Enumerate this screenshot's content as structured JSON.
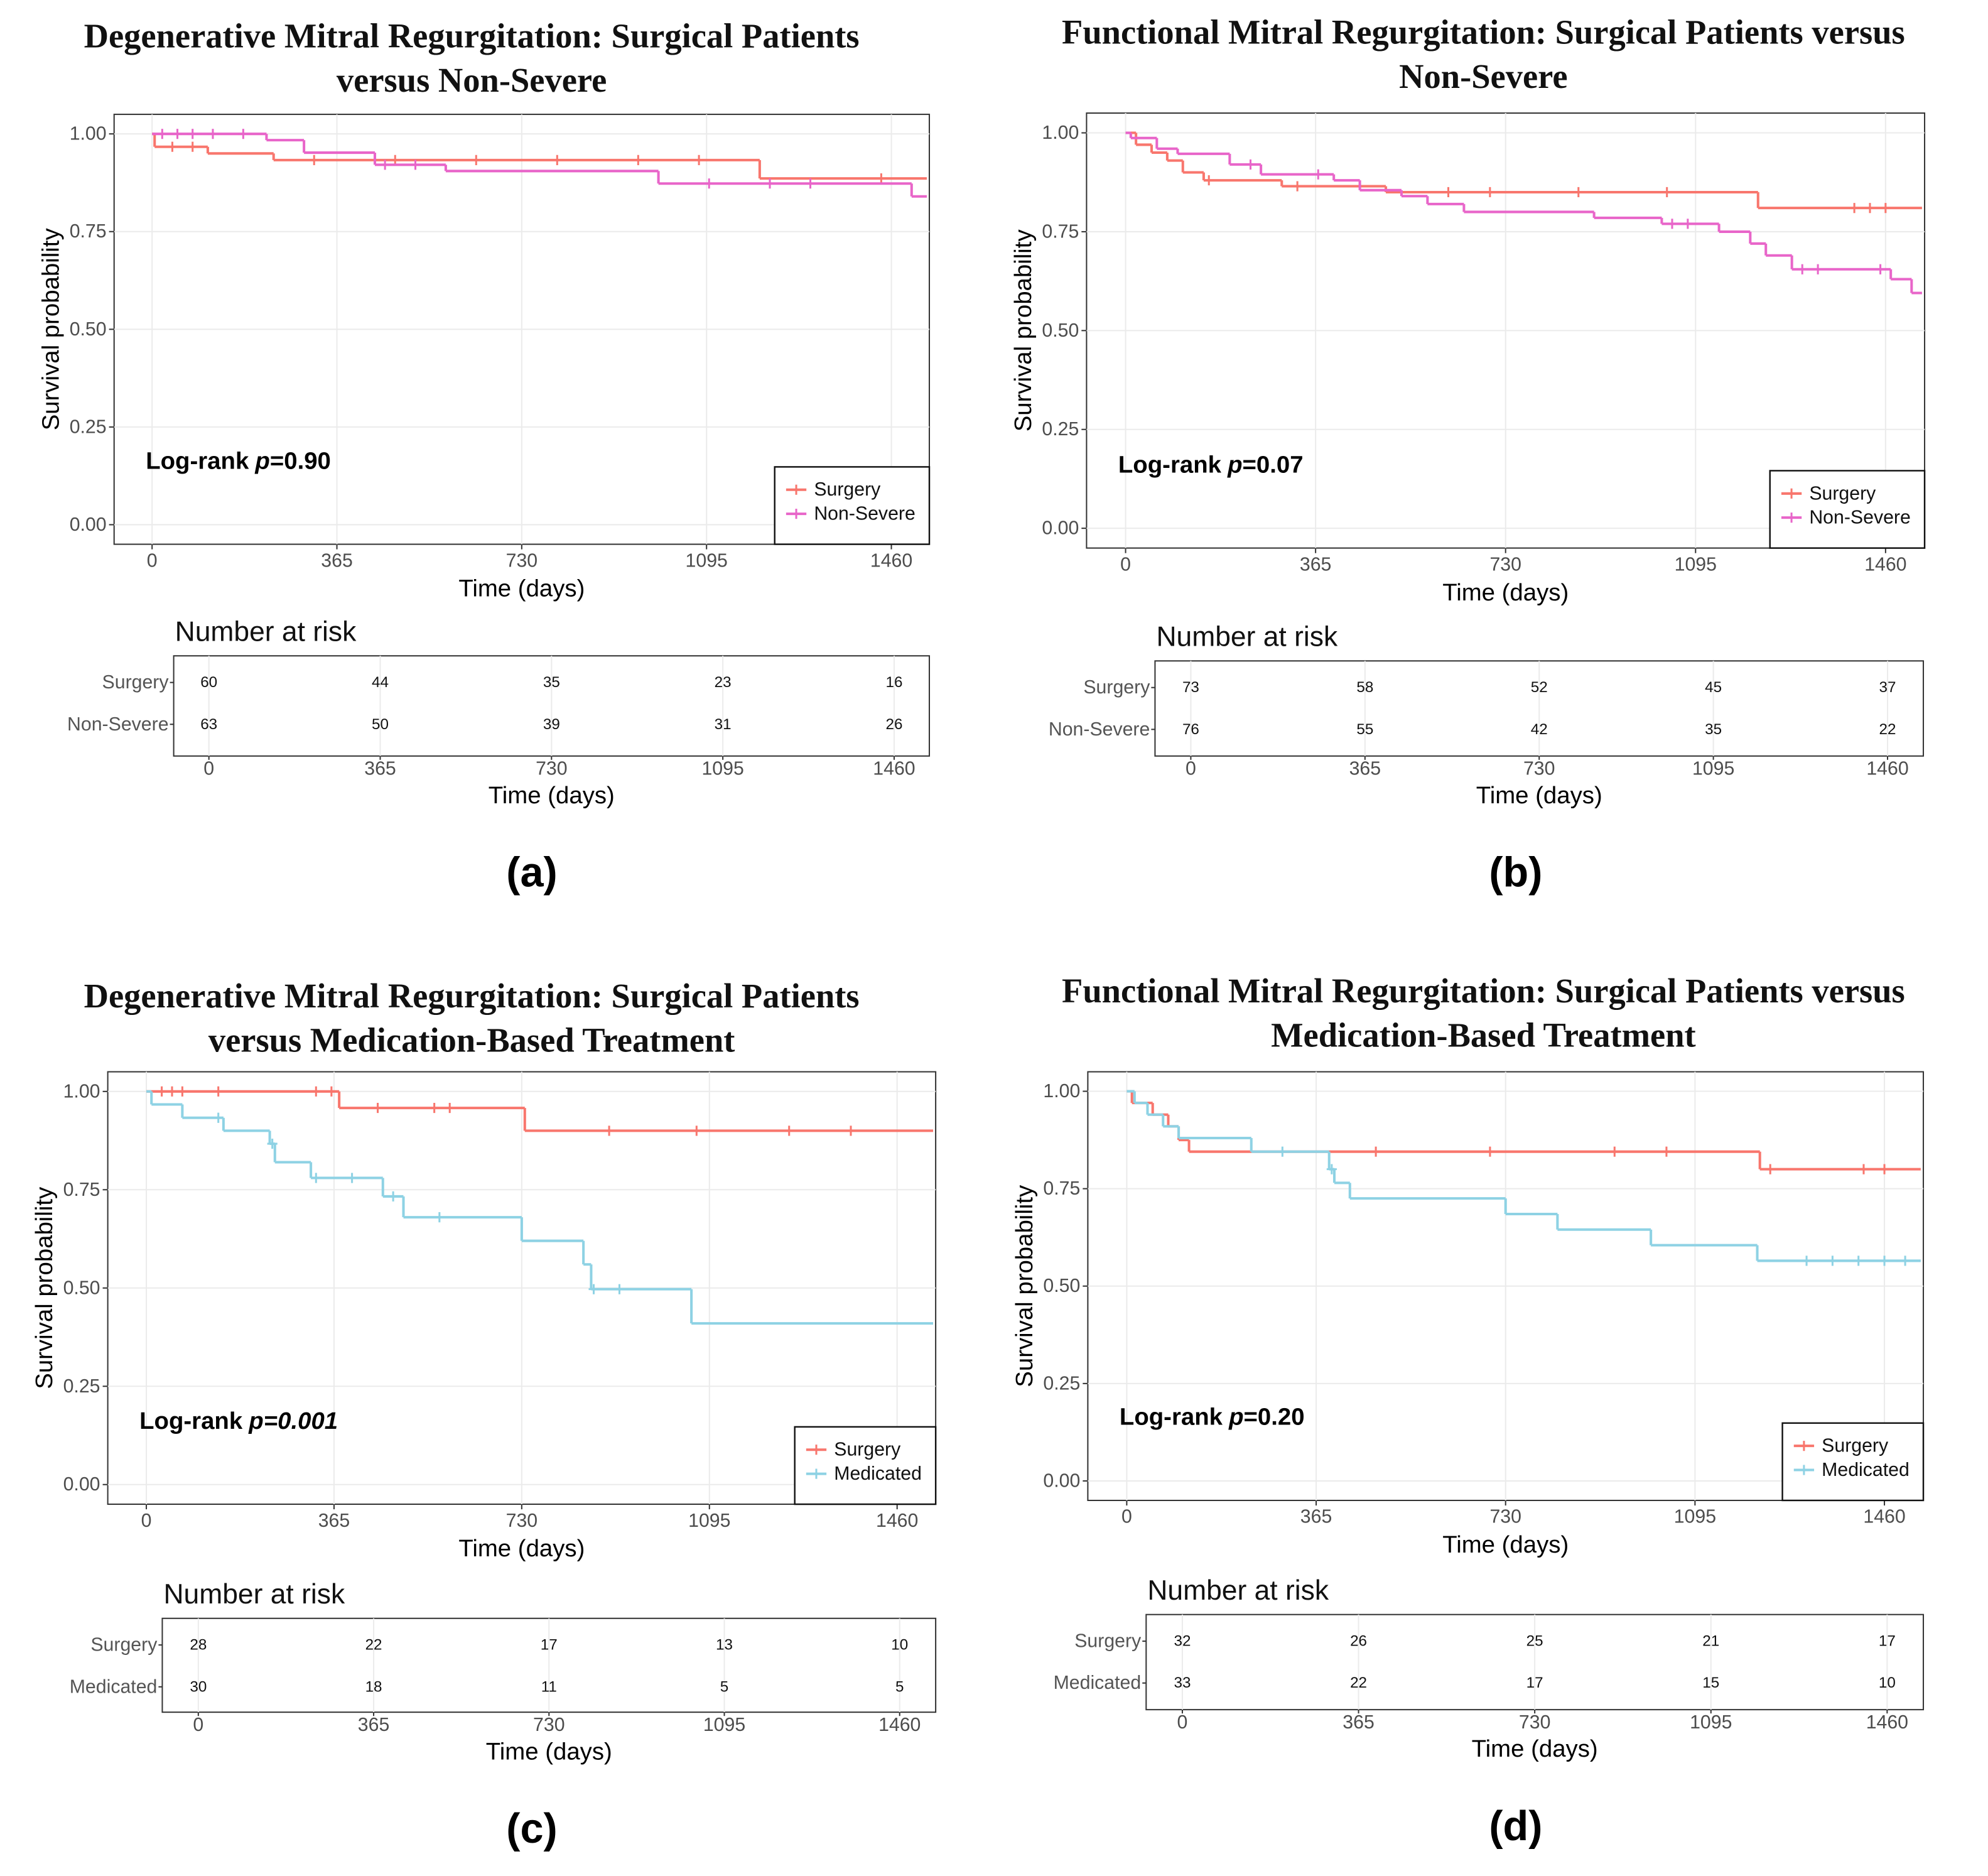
{
  "chart_data": [
    {
      "type": "step",
      "title": [
        "Degenerative Mitral Regurgitation: Surgical Patients",
        "versus Non-Severe"
      ],
      "panel_label": "(a)",
      "xlabel": "Time (days)",
      "ylabel": "Survival probability",
      "xlim": [
        -75,
        1535
      ],
      "ylim": [
        -0.05,
        1.05
      ],
      "xticks": [
        0,
        365,
        730,
        1095,
        1460
      ],
      "yticks": [
        {
          "value": 0,
          "label": "0.00"
        },
        {
          "value": 0.25,
          "label": "0.25"
        },
        {
          "value": 0.5,
          "label": "0.50"
        },
        {
          "value": 0.75,
          "label": "0.75"
        },
        {
          "value": 1,
          "label": "1.00"
        }
      ],
      "grid": true,
      "legend": "bottom-right",
      "annotation": {
        "label": "Log-rank",
        "p": "p",
        "value": "=0.90",
        "value_italic": false
      },
      "series": [
        {
          "name": "Surgery",
          "color": "#F8766D",
          "x": [
            0,
            5,
            110,
            240,
            1200,
            1530
          ],
          "values": [
            1.0,
            0.967,
            0.95,
            0.933,
            0.886,
            0.886
          ],
          "censored_x": [
            40,
            80,
            320,
            480,
            640,
            800,
            960,
            1080,
            1440
          ],
          "censored_values": [
            0.967,
            0.967,
            0.933,
            0.933,
            0.933,
            0.933,
            0.933,
            0.933,
            0.886
          ]
        },
        {
          "name": "Non-Severe",
          "color": "#E865C9",
          "x": [
            0,
            226,
            300,
            440,
            580,
            1000,
            1500,
            1530
          ],
          "values": [
            1.0,
            0.984,
            0.952,
            0.921,
            0.905,
            0.873,
            0.84,
            0.84
          ],
          "censored_x": [
            20,
            50,
            80,
            120,
            180,
            460,
            520,
            1100,
            1220,
            1300
          ],
          "censored_values": [
            1,
            1,
            1,
            1,
            1,
            0.921,
            0.921,
            0.873,
            0.873,
            0.873
          ]
        }
      ],
      "risk_table": {
        "title": "Number at risk",
        "xlabel": "Time (days)",
        "xlim": [
          -75,
          1535
        ],
        "xticks": [
          0,
          365,
          730,
          1095,
          1460
        ],
        "rows": [
          {
            "name": "Surgery",
            "values": [
              60,
              44,
              35,
              23,
              16
            ]
          },
          {
            "name": "Non-Severe",
            "values": [
              63,
              50,
              39,
              31,
              26
            ]
          }
        ]
      }
    },
    {
      "type": "step",
      "title": [
        "Functional Mitral Regurgitation: Surgical Patients versus",
        "Non-Severe"
      ],
      "panel_label": "(b)",
      "xlabel": "Time (days)",
      "ylabel": "Survival probability",
      "xlim": [
        -75,
        1535
      ],
      "ylim": [
        -0.05,
        1.05
      ],
      "xticks": [
        0,
        365,
        730,
        1095,
        1460
      ],
      "yticks": [
        {
          "value": 0,
          "label": "0.00"
        },
        {
          "value": 0.25,
          "label": "0.25"
        },
        {
          "value": 0.5,
          "label": "0.50"
        },
        {
          "value": 0.75,
          "label": "0.75"
        },
        {
          "value": 1,
          "label": "1.00"
        }
      ],
      "grid": true,
      "legend": "bottom-right",
      "annotation": {
        "label": "Log-rank",
        "p": "p",
        "value": "=0.07",
        "value_italic": false
      },
      "series": [
        {
          "name": "Surgery",
          "color": "#F8766D",
          "x": [
            0,
            20,
            50,
            80,
            110,
            150,
            300,
            500,
            1215,
            1530
          ],
          "values": [
            1.0,
            0.97,
            0.95,
            0.93,
            0.9,
            0.88,
            0.865,
            0.85,
            0.81,
            0.81
          ],
          "censored_x": [
            160,
            330,
            620,
            700,
            870,
            1040,
            1400,
            1430,
            1460
          ],
          "censored_values": [
            0.88,
            0.865,
            0.85,
            0.85,
            0.85,
            0.85,
            0.81,
            0.81,
            0.81
          ]
        },
        {
          "name": "Non-Severe",
          "color": "#E865C9",
          "x": [
            0,
            10,
            60,
            100,
            200,
            260,
            400,
            450,
            530,
            580,
            650,
            900,
            1030,
            1140,
            1200,
            1230,
            1280,
            1470,
            1510,
            1530
          ],
          "values": [
            1.0,
            0.987,
            0.96,
            0.947,
            0.92,
            0.895,
            0.88,
            0.855,
            0.84,
            0.82,
            0.8,
            0.785,
            0.77,
            0.75,
            0.72,
            0.69,
            0.655,
            0.63,
            0.595,
            0.595
          ],
          "censored_x": [
            240,
            370,
            1050,
            1080,
            1300,
            1330,
            1450
          ],
          "censored_values": [
            0.92,
            0.895,
            0.77,
            0.77,
            0.655,
            0.655,
            0.655
          ]
        }
      ],
      "risk_table": {
        "title": "Number at risk",
        "xlabel": "Time (days)",
        "xlim": [
          -75,
          1535
        ],
        "xticks": [
          0,
          365,
          730,
          1095,
          1460
        ],
        "rows": [
          {
            "name": "Surgery",
            "values": [
              73,
              58,
              52,
              45,
              37
            ]
          },
          {
            "name": "Non-Severe",
            "values": [
              76,
              55,
              42,
              35,
              22
            ]
          }
        ]
      }
    },
    {
      "type": "step",
      "title": [
        "Degenerative Mitral Regurgitation: Surgical Patients",
        "versus Medication-Based Treatment"
      ],
      "panel_label": "(c)",
      "xlabel": "Time (days)",
      "ylabel": "Survival probability",
      "xlim": [
        -75,
        1535
      ],
      "ylim": [
        -0.05,
        1.05
      ],
      "xticks": [
        0,
        365,
        730,
        1095,
        1460
      ],
      "yticks": [
        {
          "value": 0,
          "label": "0.00"
        },
        {
          "value": 0.25,
          "label": "0.25"
        },
        {
          "value": 0.5,
          "label": "0.50"
        },
        {
          "value": 0.75,
          "label": "0.75"
        },
        {
          "value": 1,
          "label": "1.00"
        }
      ],
      "grid": true,
      "legend": "bottom-right",
      "annotation": {
        "label": "Log-rank",
        "p": "p",
        "value": "=0.001",
        "value_italic": true
      },
      "series": [
        {
          "name": "Surgery",
          "color": "#F8766D",
          "x": [
            0,
            375,
            736,
            1530
          ],
          "values": [
            1.0,
            0.958,
            0.9,
            0.9
          ],
          "censored_x": [
            30,
            50,
            70,
            140,
            330,
            360,
            450,
            560,
            590,
            900,
            1070,
            1250,
            1370
          ],
          "censored_values": [
            1,
            1,
            1,
            1,
            1,
            1,
            0.958,
            0.958,
            0.958,
            0.9,
            0.9,
            0.9,
            0.9
          ]
        },
        {
          "name": "Medicated",
          "color": "#8ED2E4",
          "x": [
            0,
            10,
            70,
            150,
            240,
            250,
            320,
            460,
            500,
            730,
            850,
            865,
            1060,
            1530
          ],
          "values": [
            1.0,
            0.967,
            0.933,
            0.9,
            0.867,
            0.82,
            0.78,
            0.733,
            0.68,
            0.62,
            0.56,
            0.497,
            0.41,
            0.41
          ],
          "censored_x": [
            140,
            245,
            330,
            400,
            480,
            570,
            870,
            920
          ],
          "censored_values": [
            0.933,
            0.867,
            0.78,
            0.78,
            0.733,
            0.68,
            0.497,
            0.497
          ]
        }
      ],
      "risk_table": {
        "title": "Number at risk",
        "xlabel": "Time (days)",
        "xlim": [
          -75,
          1535
        ],
        "xticks": [
          0,
          365,
          730,
          1095,
          1460
        ],
        "rows": [
          {
            "name": "Surgery",
            "values": [
              28,
              22,
              17,
              13,
              10
            ]
          },
          {
            "name": "Medicated",
            "values": [
              30,
              18,
              11,
              5,
              5
            ]
          }
        ]
      }
    },
    {
      "type": "step",
      "title": [
        "Functional Mitral Regurgitation: Surgical Patients versus",
        "Medication-Based Treatment"
      ],
      "panel_label": "(d)",
      "xlabel": "Time (days)",
      "ylabel": "Survival probability",
      "xlim": [
        -75,
        1535
      ],
      "ylim": [
        -0.05,
        1.05
      ],
      "xticks": [
        0,
        365,
        730,
        1095,
        1460
      ],
      "yticks": [
        {
          "value": 0,
          "label": "0.00"
        },
        {
          "value": 0.25,
          "label": "0.25"
        },
        {
          "value": 0.5,
          "label": "0.50"
        },
        {
          "value": 0.75,
          "label": "0.75"
        },
        {
          "value": 1,
          "label": "1.00"
        }
      ],
      "grid": true,
      "legend": "bottom-right",
      "annotation": {
        "label": "Log-rank",
        "p": "p",
        "value": "=0.20",
        "value_italic": false
      },
      "series": [
        {
          "name": "Surgery",
          "color": "#F8766D",
          "x": [
            0,
            10,
            50,
            80,
            100,
            120,
            1220,
            1530
          ],
          "values": [
            1.0,
            0.97,
            0.94,
            0.91,
            0.875,
            0.845,
            0.8,
            0.8
          ],
          "censored_x": [
            480,
            700,
            940,
            1040,
            1240,
            1420,
            1460
          ],
          "censored_values": [
            0.845,
            0.845,
            0.845,
            0.845,
            0.8,
            0.8,
            0.8
          ]
        },
        {
          "name": "Medicated",
          "color": "#8ED2E4",
          "x": [
            0,
            15,
            40,
            70,
            100,
            240,
            390,
            400,
            430,
            730,
            830,
            1010,
            1215,
            1530
          ],
          "values": [
            1.0,
            0.97,
            0.94,
            0.91,
            0.88,
            0.845,
            0.8,
            0.765,
            0.725,
            0.685,
            0.645,
            0.605,
            0.565,
            0.565
          ],
          "censored_x": [
            300,
            395,
            1310,
            1360,
            1410,
            1460,
            1500
          ],
          "censored_values": [
            0.845,
            0.8,
            0.565,
            0.565,
            0.565,
            0.565,
            0.565
          ]
        }
      ],
      "risk_table": {
        "title": "Number at risk",
        "xlabel": "Time (days)",
        "xlim": [
          -75,
          1535
        ],
        "xticks": [
          0,
          365,
          730,
          1095,
          1460
        ],
        "rows": [
          {
            "name": "Surgery",
            "values": [
              32,
              26,
              25,
              21,
              17
            ]
          },
          {
            "name": "Medicated",
            "values": [
              33,
              22,
              17,
              15,
              10
            ]
          }
        ]
      }
    }
  ]
}
